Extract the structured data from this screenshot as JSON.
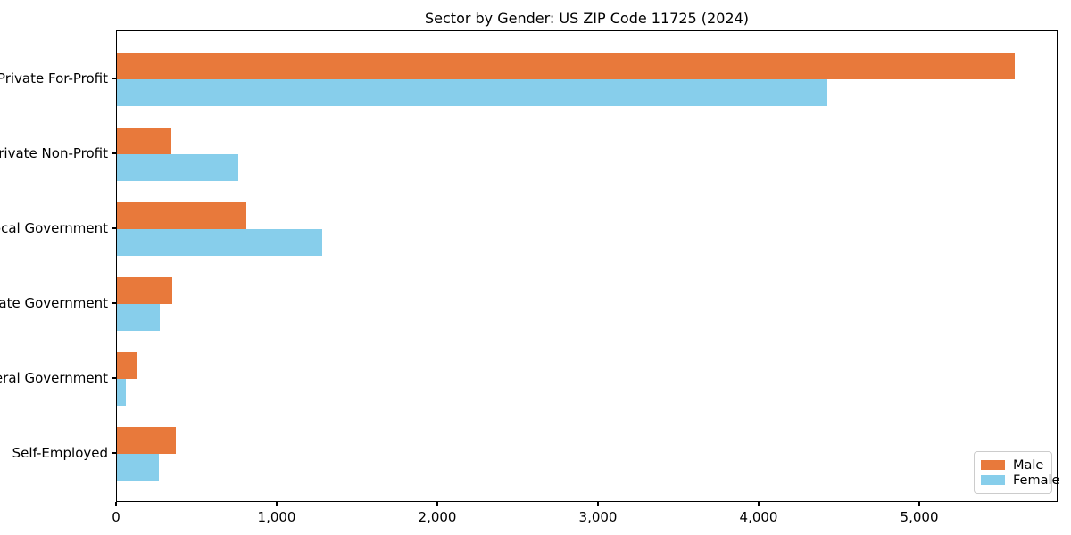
{
  "title": "Sector by Gender: US ZIP Code 11725 (2024)",
  "colors": {
    "male": "#e8793b",
    "female": "#87ceeb",
    "spine": "#000000",
    "background": "#ffffff",
    "legend_border": "#cccccc"
  },
  "legend": {
    "position": "lower right",
    "items": [
      {
        "label": "Male",
        "color": "#e8793b"
      },
      {
        "label": "Female",
        "color": "#87ceeb"
      }
    ]
  },
  "chart_data": {
    "type": "bar",
    "orientation": "horizontal",
    "title": "Sector by Gender: US ZIP Code 11725 (2024)",
    "categories": [
      "Private For-Profit",
      "Private Non-Profit",
      "Local Government",
      "State Government",
      "Federal Government",
      "Self-Employed"
    ],
    "series": [
      {
        "name": "Male",
        "color": "#e8793b",
        "values": [
          5590,
          340,
          805,
          345,
          120,
          365
        ]
      },
      {
        "name": "Female",
        "color": "#87ceeb",
        "values": [
          4420,
          755,
          1275,
          265,
          55,
          260
        ]
      }
    ],
    "xlabel": "",
    "ylabel": "",
    "xlim": [
      0,
      5861
    ],
    "xticks": [
      0,
      1000,
      2000,
      3000,
      4000,
      5000
    ],
    "xtick_labels": [
      "0",
      "1,000",
      "2,000",
      "3,000",
      "4,000",
      "5,000"
    ],
    "grid": false,
    "legend_position": "lower right"
  }
}
